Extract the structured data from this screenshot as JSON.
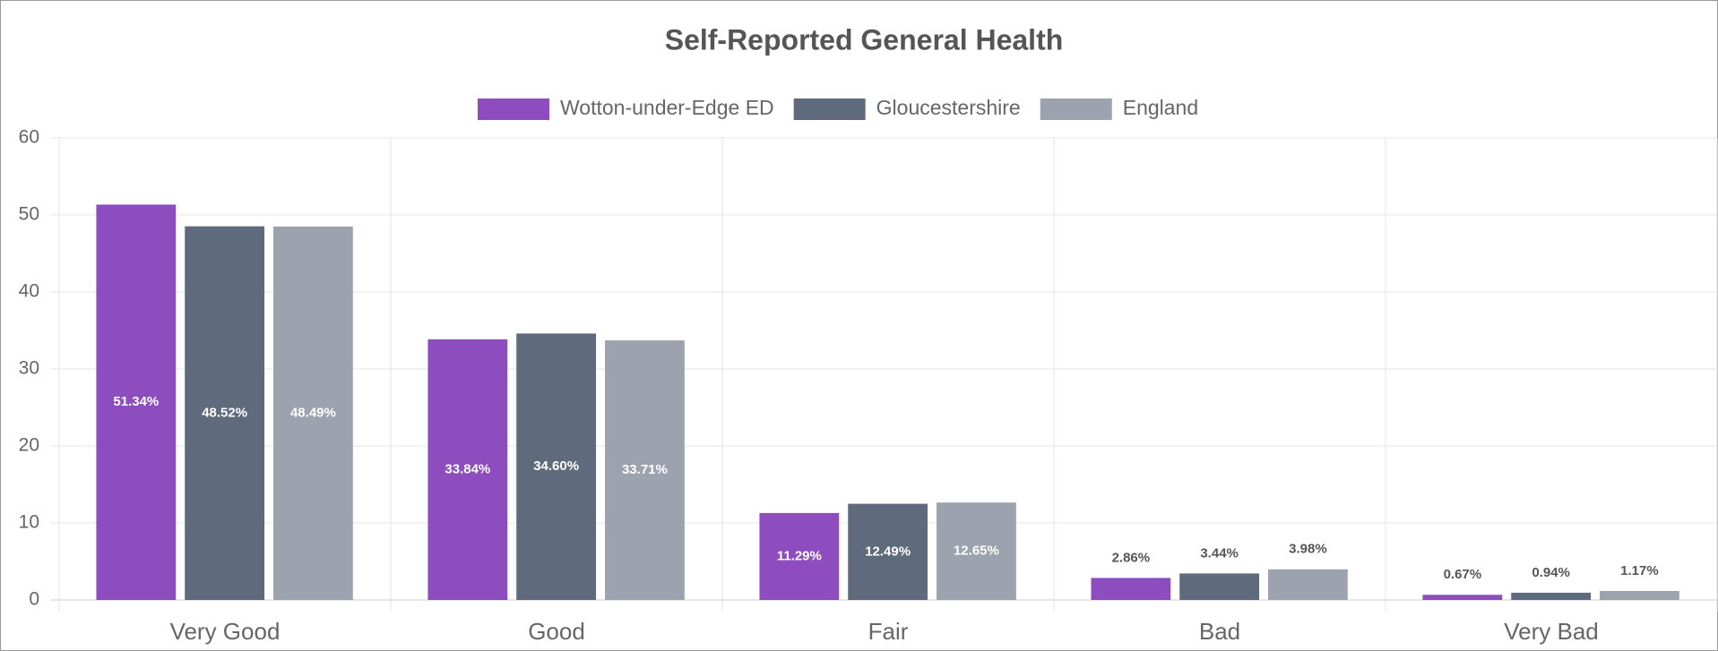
{
  "chart_data": {
    "type": "bar",
    "title": "Self-Reported General Health",
    "categories": [
      "Very Good",
      "Good",
      "Fair",
      "Bad",
      "Very Bad"
    ],
    "series": [
      {
        "name": "Wotton-under-Edge ED",
        "color": "#8e4dbf",
        "values": [
          51.34,
          33.84,
          11.29,
          2.86,
          0.67
        ],
        "value_labels": [
          "51.34%",
          "33.84%",
          "11.29%",
          "2.86%",
          "0.67%"
        ]
      },
      {
        "name": "Gloucestershire",
        "color": "#5f6b7d",
        "values": [
          48.52,
          34.6,
          12.49,
          3.44,
          0.94
        ],
        "value_labels": [
          "48.52%",
          "34.60%",
          "12.49%",
          "3.44%",
          "0.94%"
        ]
      },
      {
        "name": "England",
        "color": "#9ca3af",
        "values": [
          48.49,
          33.71,
          12.65,
          3.98,
          1.17
        ],
        "value_labels": [
          "48.49%",
          "33.71%",
          "12.65%",
          "3.98%",
          "1.17%"
        ]
      }
    ],
    "ylim": [
      0,
      60
    ],
    "yticks": [
      0,
      10,
      20,
      30,
      40,
      50,
      60
    ],
    "grid": true,
    "legend": "top"
  }
}
